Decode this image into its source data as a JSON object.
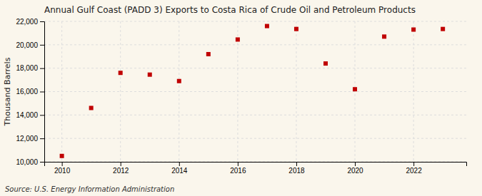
{
  "chart_data": {
    "type": "scatter",
    "title": "Annual Gulf Coast (PADD 3) Exports to Costa Rica of Crude Oil and Petroleum Products",
    "y_label": "Thousand Barrels",
    "source": "Source: U.S. Energy Information Administration",
    "x": [
      2010,
      2011,
      2012,
      2013,
      2014,
      2015,
      2016,
      2017,
      2018,
      2019,
      2020,
      2021,
      2022,
      2023
    ],
    "values": [
      10500,
      14600,
      17600,
      17450,
      16900,
      19200,
      20450,
      21600,
      21350,
      18400,
      16200,
      20700,
      21300,
      21350
    ],
    "color": "#c00000",
    "marker": "square",
    "xlim": [
      2009.4,
      2023.8
    ],
    "xticks": [
      2010,
      2012,
      2014,
      2016,
      2018,
      2020,
      2022
    ],
    "ylim": [
      10000,
      22000
    ],
    "yticks": [
      {
        "value": 10000,
        "label": "10,000"
      },
      {
        "value": 12000,
        "label": "12,000"
      },
      {
        "value": 14000,
        "label": "14,000"
      },
      {
        "value": 16000,
        "label": "16,000"
      },
      {
        "value": 18000,
        "label": "18,000"
      },
      {
        "value": 20000,
        "label": "20,000"
      },
      {
        "value": 22000,
        "label": "22,000"
      }
    ],
    "grid": true
  }
}
